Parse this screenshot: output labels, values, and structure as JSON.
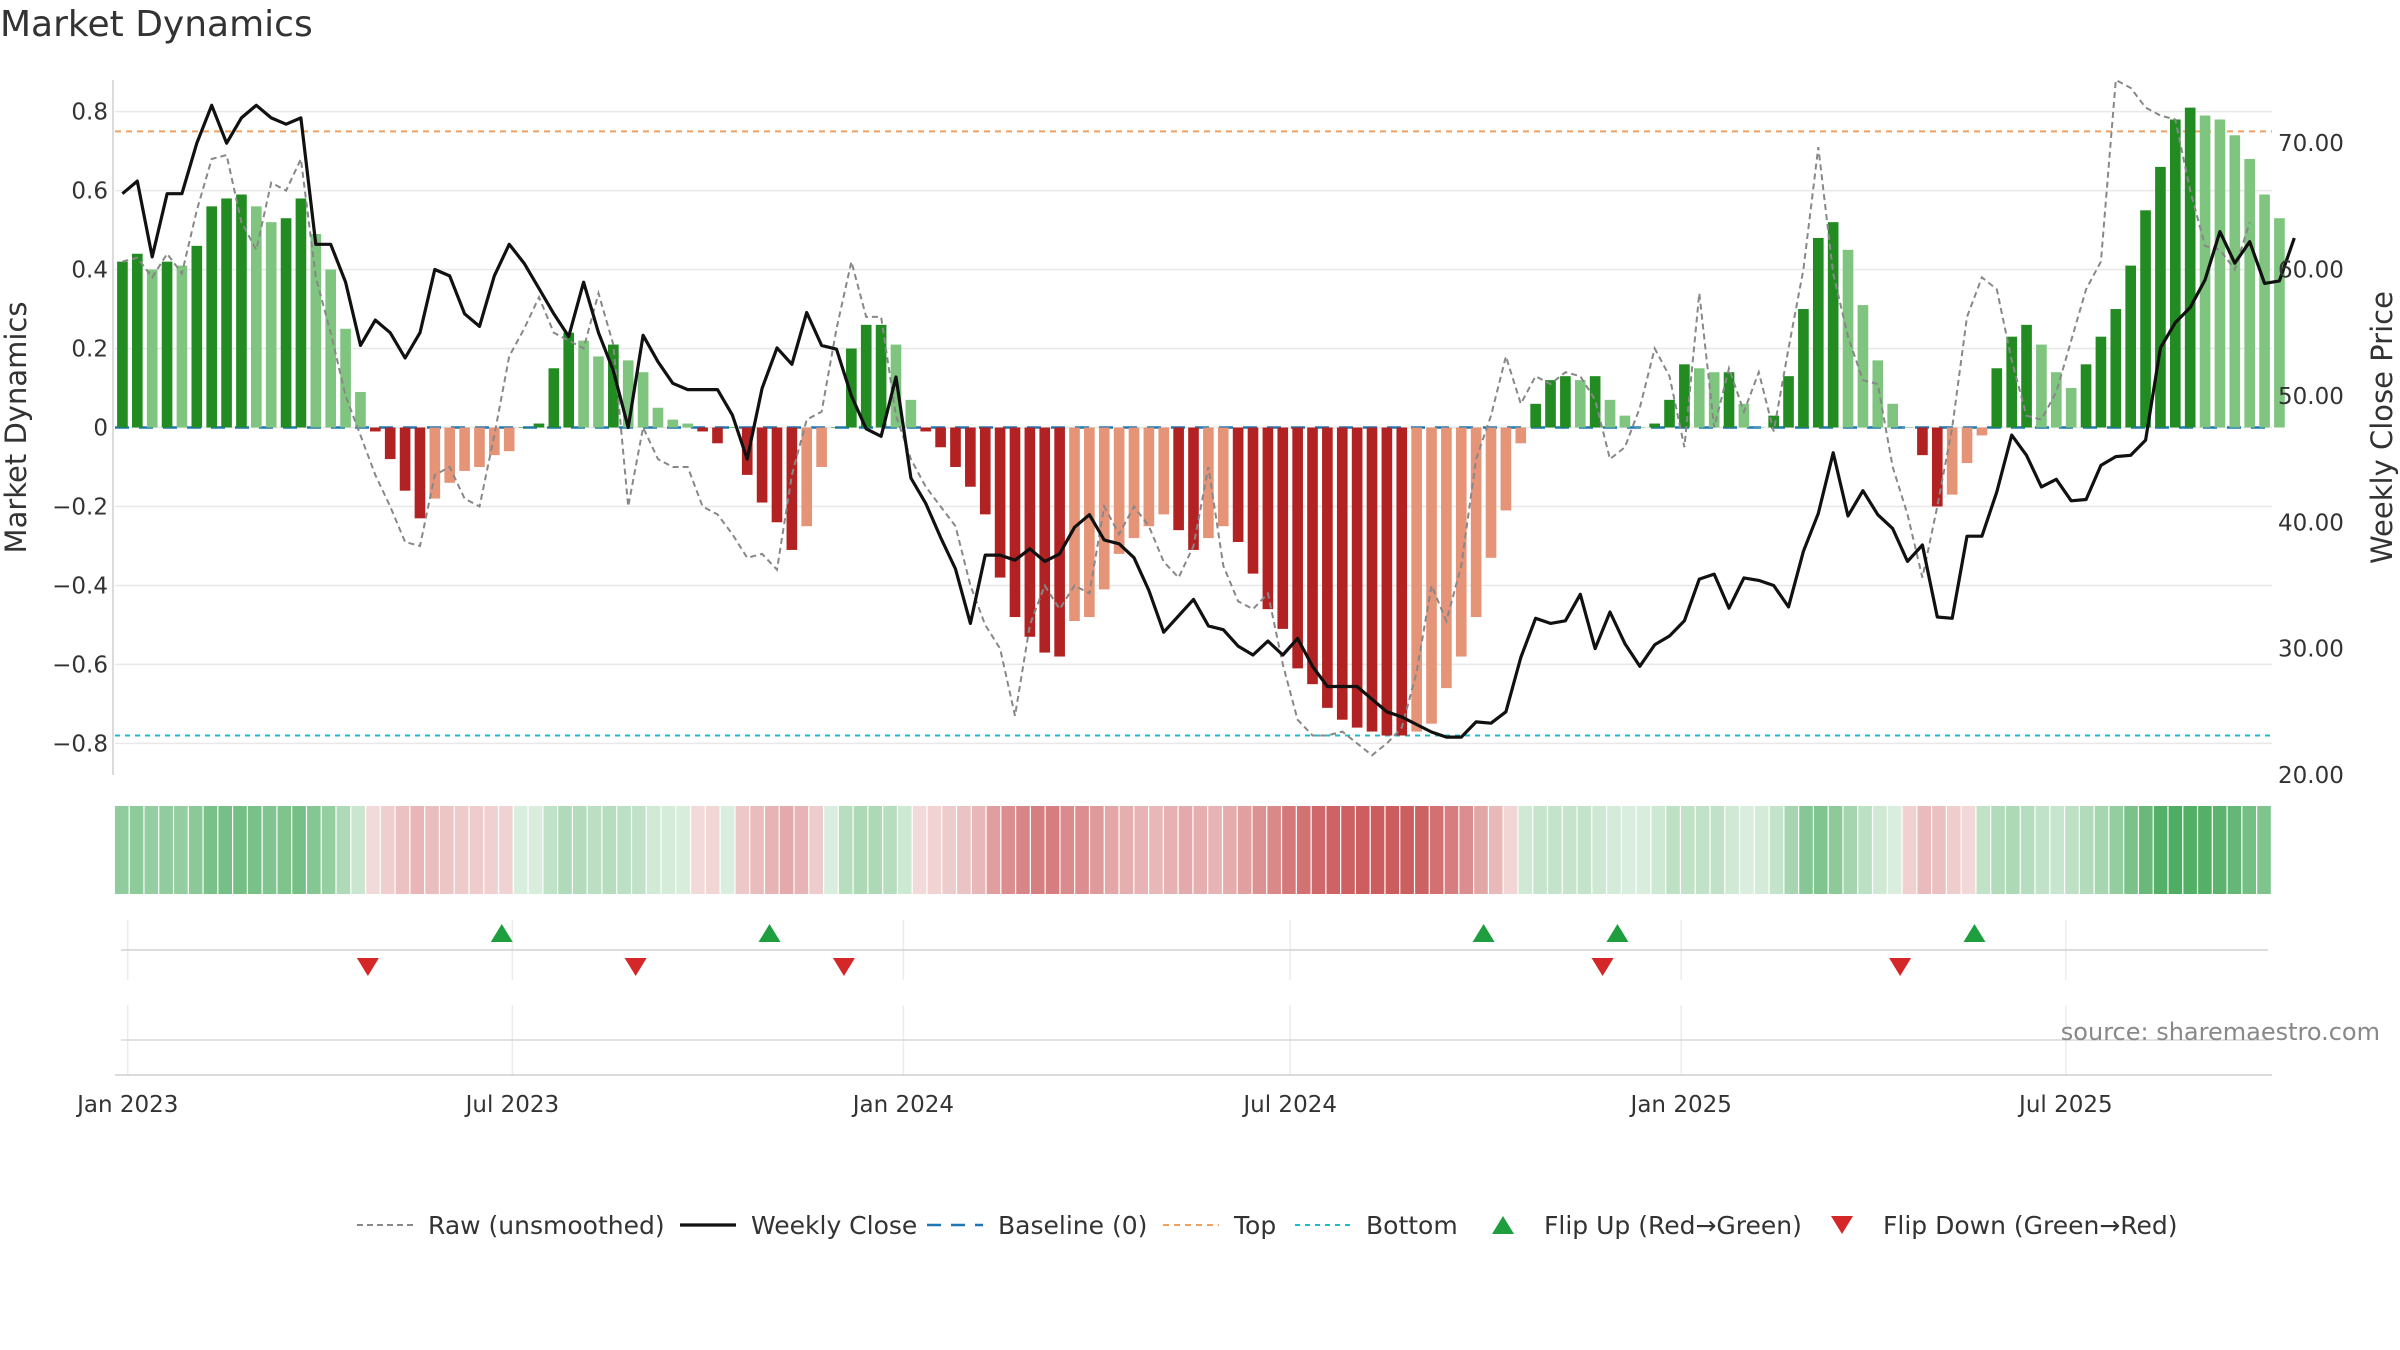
{
  "title": "Market Dynamics",
  "source": "source: sharemaestro.com",
  "chart_data": {
    "type": "bar",
    "title": "Market Dynamics",
    "ylabel_left": "Market Dynamics",
    "ylabel_right": "Weekly Close Price",
    "ylim_left": [
      -0.88,
      0.88
    ],
    "ylim_right": [
      20,
      75
    ],
    "yticks_left": [
      0.8,
      0.6,
      0.4,
      0.2,
      0,
      -0.2,
      -0.4,
      -0.6,
      -0.8
    ],
    "yticks_left_labels": [
      "0.8",
      "0.6",
      "0.4",
      "0.2",
      "0",
      "−0.2",
      "−0.4",
      "−0.6",
      "−0.8"
    ],
    "yticks_right": [
      70,
      60,
      50,
      40,
      30,
      20
    ],
    "yticks_right_labels": [
      "70.00",
      "60.00",
      "50.00",
      "40.00",
      "30.00",
      "20.00"
    ],
    "x_start": "2022-12-26",
    "x_end": "2025-10-06",
    "xticks": [
      "2023-01-01",
      "2023-07-01",
      "2024-01-01",
      "2024-07-01",
      "2025-01-01",
      "2025-07-01"
    ],
    "xtick_labels": [
      "Jan 2023",
      "Jul 2023",
      "Jan 2024",
      "Jul 2024",
      "Jan 2025",
      "Jul 2025"
    ],
    "top_line": 0.75,
    "bottom_line": -0.78,
    "baseline": 0,
    "colors": {
      "strong_green": "#228b22",
      "light_green": "#7fc47f",
      "strong_red": "#b22222",
      "light_red": "#e59478",
      "raw": "#888888",
      "close": "#111111",
      "baseline": "#1f77b4",
      "top": "#f0a060",
      "bottom": "#17becf",
      "flip_up": "#1e9e3e",
      "flip_down": "#d62728"
    },
    "market_dynamics": [
      0.42,
      0.44,
      0.4,
      0.42,
      0.41,
      0.46,
      0.56,
      0.58,
      0.59,
      0.56,
      0.52,
      0.53,
      0.58,
      0.49,
      0.4,
      0.25,
      0.09,
      -0.01,
      -0.08,
      -0.16,
      -0.23,
      -0.18,
      -0.14,
      -0.11,
      -0.1,
      -0.07,
      -0.06,
      0.0,
      0.01,
      0.15,
      0.24,
      0.22,
      0.18,
      0.21,
      0.17,
      0.14,
      0.05,
      0.02,
      0.01,
      -0.01,
      -0.04,
      0.0,
      -0.12,
      -0.19,
      -0.24,
      -0.31,
      -0.25,
      -0.1,
      0.0,
      0.2,
      0.26,
      0.26,
      0.21,
      0.07,
      -0.01,
      -0.05,
      -0.1,
      -0.15,
      -0.22,
      -0.38,
      -0.48,
      -0.53,
      -0.57,
      -0.58,
      -0.49,
      -0.48,
      -0.41,
      -0.32,
      -0.28,
      -0.25,
      -0.22,
      -0.26,
      -0.31,
      -0.28,
      -0.25,
      -0.29,
      -0.37,
      -0.46,
      -0.51,
      -0.61,
      -0.65,
      -0.71,
      -0.74,
      -0.76,
      -0.77,
      -0.78,
      -0.78,
      -0.77,
      -0.75,
      -0.66,
      -0.58,
      -0.48,
      -0.33,
      -0.21,
      -0.04,
      0.06,
      0.12,
      0.13,
      0.12,
      0.13,
      0.07,
      0.03,
      0.0,
      0.01,
      0.07,
      0.16,
      0.15,
      0.14,
      0.14,
      0.06,
      0.0,
      0.03,
      0.13,
      0.3,
      0.48,
      0.52,
      0.45,
      0.31,
      0.17,
      0.06,
      0.0,
      -0.07,
      -0.2,
      -0.17,
      -0.09,
      -0.02,
      0.15,
      0.23,
      0.26,
      0.21,
      0.14,
      0.1,
      0.16,
      0.23,
      0.3,
      0.41,
      0.55,
      0.66,
      0.78,
      0.81,
      0.79,
      0.78,
      0.74,
      0.68,
      0.59,
      0.53
    ],
    "raw_unsmoothed": [
      0.42,
      0.43,
      0.38,
      0.44,
      0.39,
      0.55,
      0.68,
      0.69,
      0.52,
      0.45,
      0.62,
      0.6,
      0.68,
      0.38,
      0.24,
      0.08,
      -0.02,
      -0.12,
      -0.2,
      -0.29,
      -0.3,
      -0.12,
      -0.1,
      -0.18,
      -0.2,
      -0.02,
      0.18,
      0.25,
      0.33,
      0.24,
      0.22,
      0.2,
      0.34,
      0.21,
      -0.2,
      0.0,
      -0.08,
      -0.1,
      -0.1,
      -0.2,
      -0.22,
      -0.27,
      -0.33,
      -0.32,
      -0.36,
      -0.12,
      0.02,
      0.04,
      0.25,
      0.42,
      0.28,
      0.28,
      0.03,
      -0.08,
      -0.15,
      -0.2,
      -0.25,
      -0.4,
      -0.5,
      -0.56,
      -0.73,
      -0.5,
      -0.4,
      -0.46,
      -0.4,
      -0.42,
      -0.2,
      -0.27,
      -0.2,
      -0.25,
      -0.34,
      -0.38,
      -0.3,
      -0.1,
      -0.35,
      -0.44,
      -0.46,
      -0.42,
      -0.6,
      -0.74,
      -0.78,
      -0.78,
      -0.77,
      -0.8,
      -0.83,
      -0.8,
      -0.76,
      -0.62,
      -0.4,
      -0.49,
      -0.35,
      -0.08,
      0.03,
      0.18,
      0.06,
      0.13,
      0.11,
      0.14,
      0.13,
      0.07,
      -0.08,
      -0.05,
      0.05,
      0.2,
      0.13,
      -0.05,
      0.34,
      0.0,
      0.15,
      0.04,
      0.14,
      -0.01,
      0.2,
      0.4,
      0.71,
      0.39,
      0.23,
      0.12,
      0.11,
      -0.1,
      -0.22,
      -0.38,
      -0.2,
      0.0,
      0.28,
      0.38,
      0.35,
      0.17,
      0.03,
      0.02,
      0.09,
      0.22,
      0.35,
      0.42,
      0.88,
      0.86,
      0.81,
      0.79,
      0.78,
      0.6,
      0.46,
      0.45,
      0.4,
      0.52
    ],
    "weekly_close": [
      66,
      67,
      61,
      66,
      66,
      70,
      73,
      70,
      72,
      73,
      72,
      71.5,
      72,
      62,
      62,
      59,
      54,
      56,
      55,
      53,
      55,
      60,
      59.5,
      56.5,
      55.5,
      59.5,
      62,
      60.5,
      58.5,
      56.5,
      54.7,
      59,
      55,
      52,
      47.5,
      54.8,
      52.7,
      51,
      50.5,
      50.5,
      50.5,
      48.5,
      45,
      50.6,
      53.8,
      52.5,
      56.6,
      54,
      53.7,
      50,
      47.4,
      46.8,
      51.5,
      43.5,
      41.5,
      38.8,
      36.3,
      32,
      37.4,
      37.4,
      37,
      37.9,
      36.9,
      37.5,
      39.6,
      40.6,
      38.6,
      38.3,
      37.2,
      34.6,
      31.3,
      32.6,
      33.9,
      31.8,
      31.5,
      30.2,
      29.5,
      30.6,
      29.5,
      30.8,
      28.6,
      27,
      27,
      27,
      26,
      25,
      24.6,
      24,
      23.4,
      23,
      23,
      24.2,
      24.1,
      25,
      29.3,
      32.4,
      32,
      32.2,
      34.3,
      30,
      32.9,
      30.4,
      28.6,
      30.3,
      31,
      32.2,
      35.5,
      35.9,
      33.2,
      35.6,
      35.4,
      35,
      33.3,
      37.7,
      40.7,
      45.5,
      40.5,
      42.5,
      40.6,
      39.5,
      36.9,
      38.2,
      32.5,
      32.4,
      38.9,
      38.9,
      42.4,
      46.9,
      45.3,
      42.8,
      43.4,
      41.7,
      41.8,
      44.5,
      45.2,
      45.3,
      46.5,
      53.8,
      55.8,
      57,
      59.2,
      63,
      60.5,
      62.2,
      58.9,
      59.1,
      62.5
    ],
    "flip_up": [
      "2023-06-26",
      "2023-10-30",
      "2024-09-30",
      "2024-12-02",
      "2025-05-19"
    ],
    "flip_down": [
      "2023-04-24",
      "2023-08-28",
      "2023-12-04",
      "2024-11-25",
      "2025-04-14"
    ],
    "legend": [
      "Raw (unsmoothed)",
      "Weekly Close",
      "Baseline (0)",
      "Top",
      "Bottom",
      "Flip Up (Red→Green)",
      "Flip Down (Green→Red)"
    ]
  }
}
